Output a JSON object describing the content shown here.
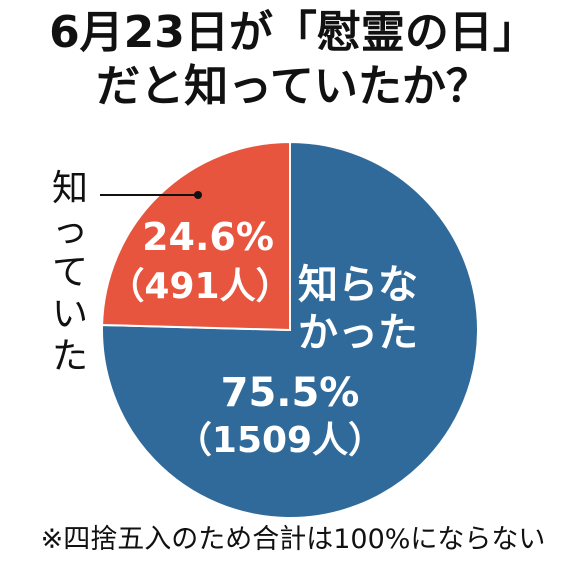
{
  "chart_data": {
    "type": "pie",
    "title": "6月23日が「慰霊の日」だと知っていたか？",
    "title_lines": [
      "6月23日が「慰霊の日」",
      "だと知っていたか？"
    ],
    "slices": [
      {
        "label": "知らなかった",
        "label_lines": [
          "知らな",
          "かった"
        ],
        "percent": 75.5,
        "percent_text": "75.5%",
        "count": 1509,
        "count_text": "（1509人）",
        "color": "#2f6a9a"
      },
      {
        "label": "知っていた",
        "percent": 24.6,
        "percent_text": "24.6%",
        "count": 491,
        "count_text": "（491人）",
        "color": "#e8553e"
      }
    ],
    "footnote": "※四捨五入のため合計は100%にならない"
  }
}
